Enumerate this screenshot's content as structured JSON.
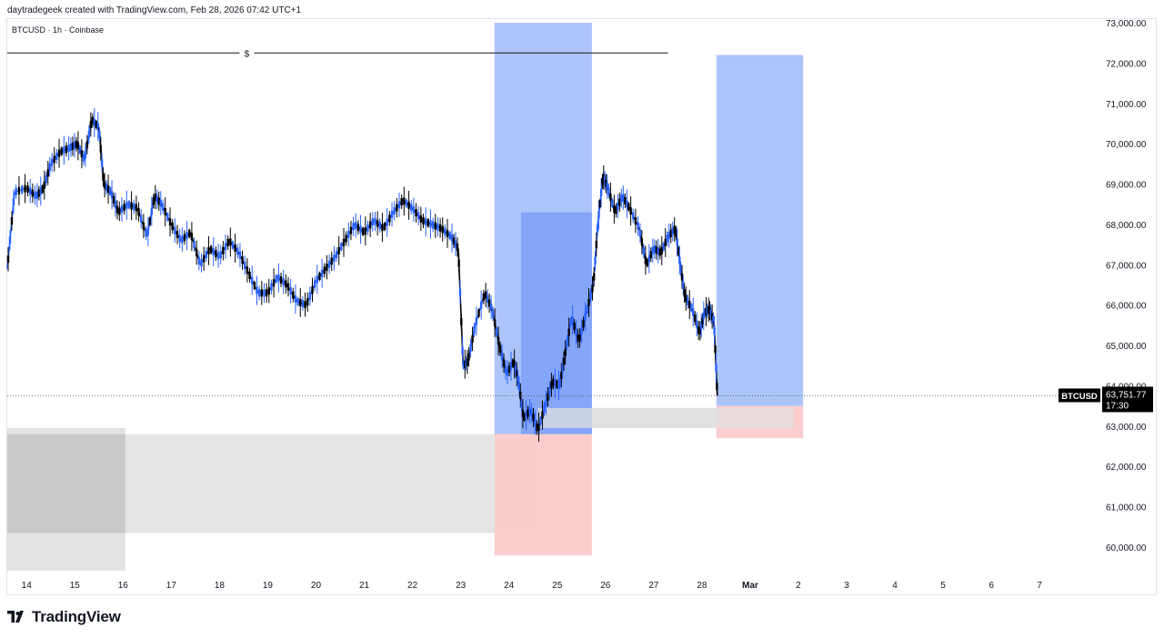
{
  "header": {
    "credit": "daytradegeek created with TradingView.com, Feb 28, 2026 07:42 UTC+1",
    "symbol_info": "BTCUSD · 1h · Coinbase"
  },
  "brand": {
    "name": "TradingView",
    "icon": "tradingview-logo-icon"
  },
  "chart_data": {
    "type": "candlestick",
    "symbol": "BTCUSD",
    "interval": "1h",
    "exchange": "Coinbase",
    "y_range": [
      59400,
      73100
    ],
    "y_ticks": [
      "73,000.00",
      "72,000.00",
      "71,000.00",
      "70,000.00",
      "69,000.00",
      "68,000.00",
      "67,000.00",
      "66,000.00",
      "65,000.00",
      "64,000.00",
      "63,000.00",
      "62,000.00",
      "61,000.00",
      "60,000.00"
    ],
    "y_tick_values": [
      73000,
      72000,
      71000,
      70000,
      69000,
      68000,
      67000,
      66000,
      65000,
      64000,
      63000,
      62000,
      61000,
      60000
    ],
    "x_ticks": [
      "14",
      "15",
      "16",
      "17",
      "18",
      "19",
      "20",
      "21",
      "22",
      "23",
      "24",
      "25",
      "26",
      "27",
      "28",
      "Mar",
      "2",
      "3",
      "4",
      "5",
      "6",
      "7"
    ],
    "x_range_days": [
      13.6,
      35.6
    ],
    "price_series": [
      {
        "t": 13.6,
        "p": 66900
      },
      {
        "t": 13.75,
        "p": 68800
      },
      {
        "t": 14.0,
        "p": 68900
      },
      {
        "t": 14.2,
        "p": 68700
      },
      {
        "t": 14.35,
        "p": 68900
      },
      {
        "t": 14.5,
        "p": 69500
      },
      {
        "t": 14.7,
        "p": 69800
      },
      {
        "t": 14.9,
        "p": 69900
      },
      {
        "t": 15.05,
        "p": 70000
      },
      {
        "t": 15.2,
        "p": 69600
      },
      {
        "t": 15.35,
        "p": 70600
      },
      {
        "t": 15.5,
        "p": 70400
      },
      {
        "t": 15.6,
        "p": 69000
      },
      {
        "t": 15.75,
        "p": 68800
      },
      {
        "t": 15.9,
        "p": 68300
      },
      {
        "t": 16.1,
        "p": 68500
      },
      {
        "t": 16.3,
        "p": 68400
      },
      {
        "t": 16.5,
        "p": 67700
      },
      {
        "t": 16.65,
        "p": 68700
      },
      {
        "t": 16.8,
        "p": 68500
      },
      {
        "t": 17.0,
        "p": 68000
      },
      {
        "t": 17.2,
        "p": 67600
      },
      {
        "t": 17.4,
        "p": 67800
      },
      {
        "t": 17.6,
        "p": 67000
      },
      {
        "t": 17.8,
        "p": 67400
      },
      {
        "t": 18.0,
        "p": 67200
      },
      {
        "t": 18.2,
        "p": 67600
      },
      {
        "t": 18.4,
        "p": 67300
      },
      {
        "t": 18.6,
        "p": 66800
      },
      {
        "t": 18.8,
        "p": 66300
      },
      {
        "t": 19.0,
        "p": 66300
      },
      {
        "t": 19.2,
        "p": 66700
      },
      {
        "t": 19.4,
        "p": 66500
      },
      {
        "t": 19.6,
        "p": 66100
      },
      {
        "t": 19.8,
        "p": 66000
      },
      {
        "t": 20.0,
        "p": 66600
      },
      {
        "t": 20.2,
        "p": 66900
      },
      {
        "t": 20.4,
        "p": 67200
      },
      {
        "t": 20.6,
        "p": 67600
      },
      {
        "t": 20.8,
        "p": 68000
      },
      {
        "t": 21.0,
        "p": 67800
      },
      {
        "t": 21.2,
        "p": 68100
      },
      {
        "t": 21.4,
        "p": 67900
      },
      {
        "t": 21.6,
        "p": 68300
      },
      {
        "t": 21.8,
        "p": 68600
      },
      {
        "t": 22.0,
        "p": 68400
      },
      {
        "t": 22.2,
        "p": 68100
      },
      {
        "t": 22.4,
        "p": 68000
      },
      {
        "t": 22.6,
        "p": 67900
      },
      {
        "t": 22.8,
        "p": 67700
      },
      {
        "t": 22.95,
        "p": 67400
      },
      {
        "t": 23.05,
        "p": 64500
      },
      {
        "t": 23.15,
        "p": 64600
      },
      {
        "t": 23.3,
        "p": 65500
      },
      {
        "t": 23.5,
        "p": 66300
      },
      {
        "t": 23.65,
        "p": 65900
      },
      {
        "t": 23.8,
        "p": 65000
      },
      {
        "t": 23.95,
        "p": 64300
      },
      {
        "t": 24.1,
        "p": 64600
      },
      {
        "t": 24.2,
        "p": 64100
      },
      {
        "t": 24.3,
        "p": 63200
      },
      {
        "t": 24.45,
        "p": 63400
      },
      {
        "t": 24.6,
        "p": 62900
      },
      {
        "t": 24.75,
        "p": 63500
      },
      {
        "t": 24.9,
        "p": 64100
      },
      {
        "t": 25.05,
        "p": 64000
      },
      {
        "t": 25.15,
        "p": 64700
      },
      {
        "t": 25.3,
        "p": 65700
      },
      {
        "t": 25.45,
        "p": 65100
      },
      {
        "t": 25.6,
        "p": 65800
      },
      {
        "t": 25.75,
        "p": 66500
      },
      {
        "t": 25.85,
        "p": 68100
      },
      {
        "t": 25.95,
        "p": 69200
      },
      {
        "t": 26.05,
        "p": 68900
      },
      {
        "t": 26.2,
        "p": 68300
      },
      {
        "t": 26.35,
        "p": 68700
      },
      {
        "t": 26.5,
        "p": 68400
      },
      {
        "t": 26.7,
        "p": 67900
      },
      {
        "t": 26.85,
        "p": 67000
      },
      {
        "t": 27.0,
        "p": 67400
      },
      {
        "t": 27.15,
        "p": 67300
      },
      {
        "t": 27.3,
        "p": 67700
      },
      {
        "t": 27.45,
        "p": 67900
      },
      {
        "t": 27.55,
        "p": 67000
      },
      {
        "t": 27.65,
        "p": 66200
      },
      {
        "t": 27.8,
        "p": 65900
      },
      {
        "t": 27.95,
        "p": 65300
      },
      {
        "t": 28.05,
        "p": 65800
      },
      {
        "t": 28.15,
        "p": 65900
      },
      {
        "t": 28.25,
        "p": 65600
      },
      {
        "t": 28.32,
        "p": 63750
      }
    ],
    "last_price": {
      "label": "BTCUSD",
      "value": "63,751.77",
      "countdown": "17:30",
      "price": 63751.77
    },
    "horizontal_line": {
      "price": 72250,
      "label": "$",
      "t_start": 13.6,
      "t_end": 27.3
    },
    "position_tools": [
      {
        "name": "long-position-1",
        "t_start": 23.7,
        "t_end": 25.72,
        "entry": 62800,
        "target": 73000,
        "stop": 59800
      },
      {
        "name": "long-position-2",
        "t_start": 28.3,
        "t_end": 30.1,
        "entry": 63500,
        "target": 72200,
        "stop": 62700
      }
    ],
    "zones": [
      {
        "name": "gray-zone-large",
        "t_start": 13.6,
        "t_end": 16.05,
        "top": 62950,
        "bottom": 59300
      },
      {
        "name": "gray-zone-wide",
        "t_start": 13.6,
        "t_end": 24.55,
        "top": 62800,
        "bottom": 60350
      },
      {
        "name": "gray-zone-small",
        "t_start": 24.6,
        "t_end": 29.9,
        "top": 63450,
        "bottom": 62950
      }
    ],
    "dark_box": {
      "t_start": 24.25,
      "t_end": 25.72,
      "top": 68300,
      "bottom": 62800
    },
    "colors": {
      "up_candle": "#2962ff",
      "down_candle": "#000000",
      "target_fill": "#a9c1fb",
      "stop_fill": "#fbcaca",
      "inner_box": "#7a9ef7",
      "zone_fill": "#e0e0e0",
      "zone_dark": "#c8c8c8"
    }
  }
}
